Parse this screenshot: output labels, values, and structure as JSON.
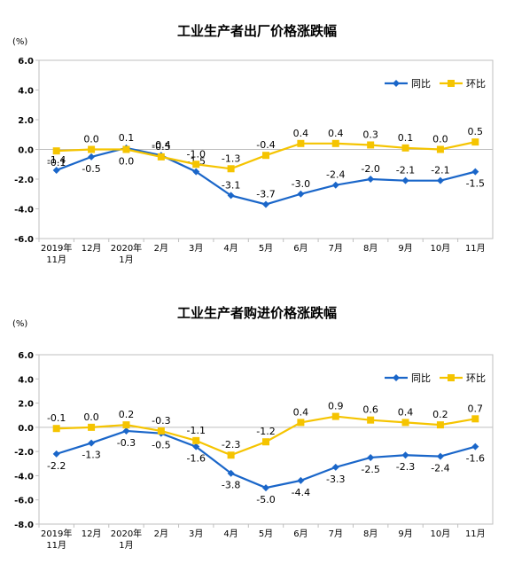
{
  "chart_data": [
    {
      "type": "line",
      "title": "工业生产者出厂价格涨跌幅",
      "unit": "(%)",
      "categories": [
        "2019年\n11月",
        "12月",
        "2020年\n1月",
        "2月",
        "3月",
        "4月",
        "5月",
        "6月",
        "7月",
        "8月",
        "9月",
        "10月",
        "11月"
      ],
      "ylim": [
        -6.0,
        6.0
      ],
      "yticks": [
        "-6.0",
        "-4.0",
        "-2.0",
        "0.0",
        "2.0",
        "4.0",
        "6.0"
      ],
      "legend_position": "top-right",
      "series": [
        {
          "name": "同比",
          "color": "#1a66c9",
          "marker": "diamond",
          "values": [
            -1.4,
            -0.5,
            0.1,
            -0.4,
            -1.5,
            -3.1,
            -3.7,
            -3.0,
            -2.4,
            -2.0,
            -2.1,
            -2.1,
            -1.5
          ],
          "labels": [
            "-1.4",
            "-0.5",
            "0.1",
            "-0.4",
            "-1.5",
            "-3.1",
            "-3.7",
            "-3.0",
            "-2.4",
            "-2.0",
            "-2.1",
            "-2.1",
            "-1.5"
          ]
        },
        {
          "name": "环比",
          "color": "#f5c400",
          "marker": "square",
          "values": [
            -0.1,
            0.0,
            0.0,
            -0.5,
            -1.0,
            -1.3,
            -0.4,
            0.4,
            0.4,
            0.3,
            0.1,
            0.0,
            0.5
          ],
          "labels": [
            "-0.1",
            "0.0",
            "0.0",
            "-0.5",
            "-1.0",
            "-1.3",
            "-0.4",
            "0.4",
            "0.4",
            "0.3",
            "0.1",
            "0.0",
            "0.5"
          ]
        }
      ]
    },
    {
      "type": "line",
      "title": "工业生产者购进价格涨跌幅",
      "unit": "(%)",
      "categories": [
        "2019年\n11月",
        "12月",
        "2020年\n1月",
        "2月",
        "3月",
        "4月",
        "5月",
        "6月",
        "7月",
        "8月",
        "9月",
        "10月",
        "11月"
      ],
      "ylim": [
        -8.0,
        6.0
      ],
      "yticks": [
        "-8.0",
        "-6.0",
        "-4.0",
        "-2.0",
        "0.0",
        "2.0",
        "4.0",
        "6.0"
      ],
      "legend_position": "top-right",
      "series": [
        {
          "name": "同比",
          "color": "#1a66c9",
          "marker": "diamond",
          "values": [
            -2.2,
            -1.3,
            -0.3,
            -0.5,
            -1.6,
            -3.8,
            -5.0,
            -4.4,
            -3.3,
            -2.5,
            -2.3,
            -2.4,
            -1.6
          ],
          "labels": [
            "-2.2",
            "-1.3",
            "-0.3",
            "-0.5",
            "-1.6",
            "-3.8",
            "-5.0",
            "-4.4",
            "-3.3",
            "-2.5",
            "-2.3",
            "-2.4",
            "-1.6"
          ]
        },
        {
          "name": "环比",
          "color": "#f5c400",
          "marker": "square",
          "values": [
            -0.1,
            0.0,
            0.2,
            -0.3,
            -1.1,
            -2.3,
            -1.2,
            0.4,
            0.9,
            0.6,
            0.4,
            0.2,
            0.7
          ],
          "labels": [
            "-0.1",
            "0.0",
            "0.2",
            "-0.3",
            "-1.1",
            "-2.3",
            "-1.2",
            "0.4",
            "0.9",
            "0.6",
            "0.4",
            "0.2",
            "0.7"
          ]
        }
      ]
    }
  ]
}
